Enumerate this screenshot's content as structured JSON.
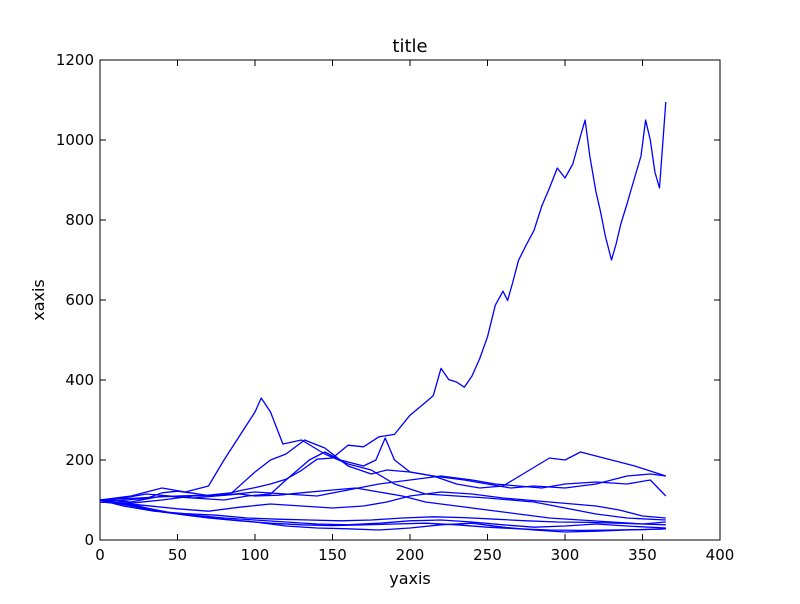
{
  "chart_data": {
    "type": "line",
    "title": "title",
    "xlabel": "yaxis",
    "ylabel": "xaxis",
    "xlim": [
      0,
      400
    ],
    "ylim": [
      0,
      1200
    ],
    "xticks": [
      0,
      50,
      100,
      150,
      200,
      250,
      300,
      350,
      400
    ],
    "xtick_labels": [
      "0",
      "50",
      "100",
      "150",
      "200",
      "250",
      "300",
      "350",
      "400"
    ],
    "yticks": [
      0,
      200,
      400,
      600,
      800,
      1000,
      1200
    ],
    "ytick_labels": [
      "0",
      "200",
      "400",
      "600",
      "800",
      "1000",
      "1200"
    ],
    "grid": false,
    "legend": "none",
    "line_color": "#0000ff",
    "series": [
      {
        "points": [
          [
            0,
            100
          ],
          [
            15,
            105
          ],
          [
            30,
            115
          ],
          [
            45,
            110
          ],
          [
            60,
            105
          ],
          [
            75,
            110
          ],
          [
            90,
            115
          ],
          [
            100,
            110
          ],
          [
            115,
            112
          ],
          [
            130,
            118
          ],
          [
            150,
            125
          ],
          [
            165,
            130
          ],
          [
            180,
            120
          ],
          [
            195,
            110
          ],
          [
            210,
            95
          ],
          [
            230,
            85
          ],
          [
            250,
            75
          ],
          [
            270,
            65
          ],
          [
            290,
            55
          ],
          [
            310,
            50
          ],
          [
            330,
            45
          ],
          [
            350,
            40
          ],
          [
            365,
            45
          ]
        ]
      },
      {
        "points": [
          [
            0,
            100
          ],
          [
            20,
            110
          ],
          [
            40,
            130
          ],
          [
            55,
            120
          ],
          [
            70,
            135
          ],
          [
            80,
            200
          ],
          [
            90,
            260
          ],
          [
            100,
            320
          ],
          [
            104,
            355
          ],
          [
            110,
            320
          ],
          [
            118,
            240
          ],
          [
            130,
            250
          ],
          [
            145,
            215
          ],
          [
            160,
            190
          ],
          [
            175,
            175
          ],
          [
            190,
            140
          ],
          [
            210,
            115
          ],
          [
            230,
            110
          ],
          [
            250,
            105
          ],
          [
            265,
            100
          ],
          [
            280,
            95
          ],
          [
            300,
            80
          ],
          [
            320,
            65
          ],
          [
            340,
            55
          ],
          [
            365,
            50
          ]
        ]
      },
      {
        "points": [
          [
            0,
            100
          ],
          [
            25,
            105
          ],
          [
            50,
            110
          ],
          [
            70,
            112
          ],
          [
            85,
            118
          ],
          [
            100,
            170
          ],
          [
            110,
            200
          ],
          [
            120,
            215
          ],
          [
            132,
            250
          ],
          [
            145,
            230
          ],
          [
            160,
            185
          ],
          [
            175,
            165
          ],
          [
            185,
            175
          ],
          [
            200,
            170
          ],
          [
            215,
            160
          ],
          [
            230,
            140
          ],
          [
            245,
            130
          ],
          [
            260,
            135
          ],
          [
            275,
            170
          ],
          [
            290,
            205
          ],
          [
            300,
            200
          ],
          [
            310,
            220
          ],
          [
            330,
            200
          ],
          [
            345,
            185
          ],
          [
            365,
            160
          ]
        ]
      },
      {
        "points": [
          [
            0,
            100
          ],
          [
            20,
            95
          ],
          [
            40,
            110
          ],
          [
            60,
            105
          ],
          [
            80,
            100
          ],
          [
            95,
            110
          ],
          [
            110,
            115
          ],
          [
            120,
            150
          ],
          [
            135,
            200
          ],
          [
            145,
            220
          ],
          [
            155,
            200
          ],
          [
            170,
            185
          ],
          [
            178,
            200
          ],
          [
            184,
            255
          ],
          [
            190,
            200
          ],
          [
            200,
            170
          ],
          [
            215,
            160
          ],
          [
            235,
            150
          ],
          [
            250,
            140
          ],
          [
            265,
            130
          ],
          [
            280,
            135
          ],
          [
            300,
            130
          ],
          [
            320,
            140
          ],
          [
            340,
            160
          ],
          [
            355,
            165
          ],
          [
            365,
            160
          ]
        ]
      },
      {
        "points": [
          [
            0,
            95
          ],
          [
            20,
            92
          ],
          [
            40,
            100
          ],
          [
            60,
            110
          ],
          [
            80,
            112
          ],
          [
            100,
            120
          ],
          [
            120,
            115
          ],
          [
            140,
            110
          ],
          [
            160,
            125
          ],
          [
            180,
            140
          ],
          [
            200,
            150
          ],
          [
            220,
            160
          ],
          [
            240,
            150
          ],
          [
            255,
            140
          ],
          [
            270,
            135
          ],
          [
            285,
            130
          ],
          [
            300,
            140
          ],
          [
            320,
            145
          ],
          [
            340,
            140
          ],
          [
            355,
            150
          ],
          [
            365,
            110
          ]
        ]
      },
      {
        "points": [
          [
            0,
            95
          ],
          [
            25,
            88
          ],
          [
            50,
            78
          ],
          [
            70,
            72
          ],
          [
            90,
            82
          ],
          [
            110,
            90
          ],
          [
            130,
            85
          ],
          [
            150,
            80
          ],
          [
            170,
            85
          ],
          [
            185,
            95
          ],
          [
            200,
            110
          ],
          [
            220,
            120
          ],
          [
            240,
            115
          ],
          [
            260,
            105
          ],
          [
            275,
            100
          ],
          [
            290,
            95
          ],
          [
            305,
            90
          ],
          [
            320,
            85
          ],
          [
            335,
            75
          ],
          [
            350,
            60
          ],
          [
            365,
            55
          ]
        ]
      },
      {
        "points": [
          [
            0,
            100
          ],
          [
            20,
            85
          ],
          [
            40,
            70
          ],
          [
            60,
            62
          ],
          [
            80,
            55
          ],
          [
            100,
            50
          ],
          [
            120,
            45
          ],
          [
            140,
            40
          ],
          [
            160,
            38
          ],
          [
            180,
            42
          ],
          [
            200,
            48
          ],
          [
            220,
            50
          ],
          [
            240,
            45
          ],
          [
            260,
            38
          ],
          [
            280,
            32
          ],
          [
            300,
            35
          ],
          [
            320,
            40
          ],
          [
            340,
            35
          ],
          [
            365,
            30
          ]
        ]
      },
      {
        "points": [
          [
            0,
            100
          ],
          [
            30,
            80
          ],
          [
            50,
            65
          ],
          [
            70,
            55
          ],
          [
            90,
            48
          ],
          [
            110,
            42
          ],
          [
            130,
            38
          ],
          [
            150,
            36
          ],
          [
            170,
            38
          ],
          [
            190,
            40
          ],
          [
            210,
            42
          ],
          [
            230,
            38
          ],
          [
            250,
            32
          ],
          [
            270,
            28
          ],
          [
            290,
            25
          ],
          [
            310,
            24
          ],
          [
            330,
            25
          ],
          [
            350,
            26
          ],
          [
            365,
            28
          ]
        ]
      },
      {
        "points": [
          [
            0,
            100
          ],
          [
            15,
            85
          ],
          [
            35,
            72
          ],
          [
            55,
            66
          ],
          [
            75,
            62
          ],
          [
            95,
            55
          ],
          [
            115,
            52
          ],
          [
            135,
            50
          ],
          [
            155,
            48
          ],
          [
            175,
            50
          ],
          [
            195,
            55
          ],
          [
            215,
            58
          ],
          [
            235,
            56
          ],
          [
            255,
            52
          ],
          [
            275,
            48
          ],
          [
            295,
            45
          ],
          [
            315,
            44
          ],
          [
            335,
            42
          ],
          [
            350,
            40
          ],
          [
            365,
            38
          ]
        ]
      },
      {
        "points": [
          [
            0,
            95
          ],
          [
            20,
            90
          ],
          [
            40,
            70
          ],
          [
            60,
            60
          ],
          [
            80,
            52
          ],
          [
            100,
            45
          ],
          [
            120,
            35
          ],
          [
            140,
            30
          ],
          [
            160,
            28
          ],
          [
            180,
            25
          ],
          [
            200,
            30
          ],
          [
            220,
            38
          ],
          [
            240,
            42
          ],
          [
            260,
            32
          ],
          [
            280,
            25
          ],
          [
            300,
            20
          ],
          [
            320,
            22
          ],
          [
            340,
            25
          ],
          [
            365,
            28
          ]
        ]
      },
      {
        "points": [
          [
            0,
            100
          ],
          [
            12,
            98
          ],
          [
            20,
            101
          ],
          [
            30,
            104
          ],
          [
            40,
            118
          ],
          [
            50,
            122
          ],
          [
            60,
            117
          ],
          [
            70,
            111
          ],
          [
            80,
            113
          ],
          [
            90,
            123
          ],
          [
            100,
            131
          ],
          [
            110,
            140
          ],
          [
            120,
            152
          ],
          [
            130,
            174
          ],
          [
            140,
            202
          ],
          [
            150,
            205
          ],
          [
            160,
            237
          ],
          [
            170,
            233
          ],
          [
            180,
            258
          ],
          [
            190,
            264
          ],
          [
            200,
            312
          ],
          [
            210,
            344
          ],
          [
            215,
            361
          ],
          [
            220,
            429
          ],
          [
            225,
            401
          ],
          [
            230,
            395
          ],
          [
            235,
            382
          ],
          [
            240,
            410
          ],
          [
            245,
            454
          ],
          [
            250,
            508
          ],
          [
            255,
            587
          ],
          [
            260,
            622
          ],
          [
            263,
            599
          ],
          [
            266,
            640
          ],
          [
            270,
            699
          ],
          [
            275,
            738
          ],
          [
            280,
            774
          ],
          [
            285,
            835
          ],
          [
            290,
            880
          ],
          [
            295,
            930
          ],
          [
            300,
            905
          ],
          [
            305,
            940
          ],
          [
            310,
            1010
          ],
          [
            313,
            1050
          ],
          [
            316,
            960
          ],
          [
            320,
            870
          ],
          [
            323,
            820
          ],
          [
            326,
            760
          ],
          [
            330,
            700
          ],
          [
            333,
            740
          ],
          [
            336,
            790
          ],
          [
            340,
            840
          ],
          [
            343,
            880
          ],
          [
            346,
            920
          ],
          [
            349,
            960
          ],
          [
            352,
            1050
          ],
          [
            355,
            1000
          ],
          [
            358,
            920
          ],
          [
            361,
            880
          ],
          [
            365,
            1095
          ]
        ]
      }
    ]
  }
}
